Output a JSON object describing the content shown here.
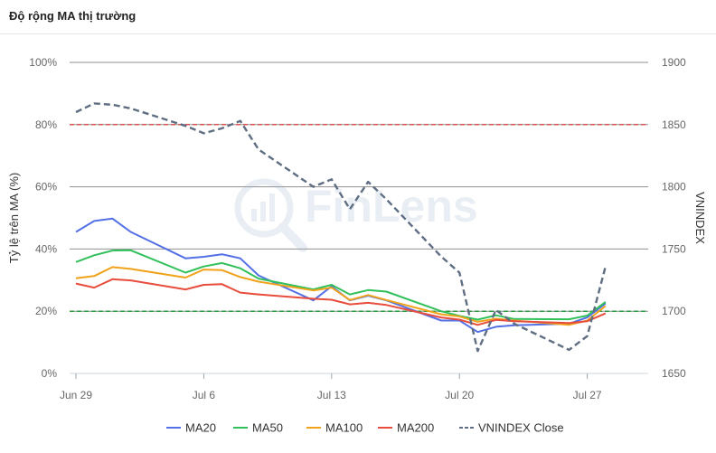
{
  "header": {
    "title": "Độ rộng MA thị trường"
  },
  "watermark": {
    "text": "FinLens"
  },
  "chart_data": {
    "type": "line",
    "ylabel_left": "Tỷ lệ trên MA (%)",
    "ylabel_right": "VNINDEX",
    "ylim_left": [
      0,
      100
    ],
    "ylim_right": [
      1650,
      1900
    ],
    "y_ticks_left": [
      "0%",
      "20%",
      "40%",
      "60%",
      "80%",
      "100%"
    ],
    "y_ticks_right": [
      "1650",
      "1700",
      "1750",
      "1800",
      "1850",
      "1900"
    ],
    "x_ticks": [
      "Jun 29",
      "Jul 6",
      "Jul 13",
      "Jul 20",
      "Jul 27"
    ],
    "x_tick_days": [
      0,
      7,
      14,
      21,
      28
    ],
    "x_days": [
      0,
      1,
      2,
      3,
      6,
      7,
      8,
      9,
      10,
      13,
      14,
      15,
      16,
      17,
      20,
      21,
      22,
      23,
      24,
      27,
      28,
      29
    ],
    "reference_lines": [
      {
        "value": 80,
        "color": "#d9534f"
      },
      {
        "value": 20,
        "color": "#2e9e44"
      }
    ],
    "series": [
      {
        "name": "MA20",
        "axis": "left",
        "color": "#5470e6",
        "values": [
          45.5,
          49,
          49.8,
          45.5,
          37,
          37.5,
          38.3,
          37,
          31.5,
          23.5,
          28,
          23.5,
          25,
          23.5,
          17,
          17,
          13.3,
          15,
          15.5,
          16,
          18,
          22.5
        ]
      },
      {
        "name": "MA50",
        "axis": "left",
        "color": "#31c05a",
        "values": [
          35.8,
          38,
          39.5,
          39.6,
          32.4,
          34.4,
          35.5,
          33.8,
          30.5,
          27,
          28.5,
          25.4,
          26.8,
          26.3,
          20,
          18.5,
          17.3,
          18.7,
          17.5,
          17.4,
          18.6,
          23
        ]
      },
      {
        "name": "MA100",
        "axis": "left",
        "color": "#f0a31a",
        "values": [
          30.6,
          31.3,
          34.2,
          33.6,
          30.8,
          33.4,
          33.2,
          31,
          29.5,
          26.7,
          27.6,
          23.6,
          25.2,
          23.6,
          19,
          18.3,
          16.6,
          17.6,
          17,
          15.6,
          17,
          21.7
        ]
      },
      {
        "name": "MA200",
        "axis": "left",
        "color": "#e84c3d",
        "values": [
          28.9,
          27.6,
          30.3,
          29.9,
          27,
          28.5,
          28.7,
          26,
          25.4,
          24,
          23.7,
          22.2,
          22.7,
          22,
          18,
          17.3,
          15.6,
          17.2,
          16.8,
          16.2,
          16.8,
          19.3
        ]
      },
      {
        "name": "VNINDEX Close",
        "axis": "right",
        "color": "#5f6e82",
        "dashed": true,
        "values": [
          1860,
          1867,
          1866,
          1863,
          1849,
          1843,
          1847,
          1853,
          1830,
          1800,
          1806,
          1782,
          1804,
          1790,
          1744,
          1731,
          1668,
          1701,
          1690,
          1669,
          1680,
          1736
        ]
      }
    ]
  }
}
